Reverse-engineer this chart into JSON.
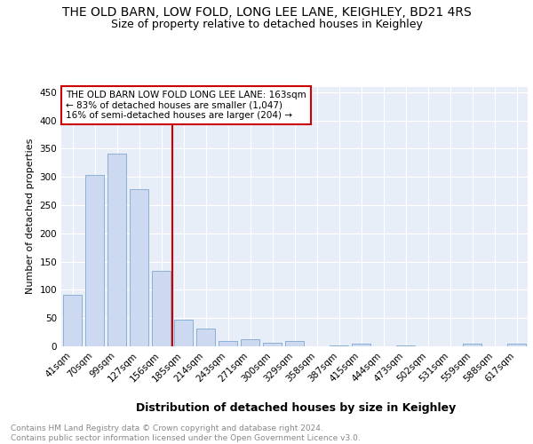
{
  "title": "THE OLD BARN, LOW FOLD, LONG LEE LANE, KEIGHLEY, BD21 4RS",
  "subtitle": "Size of property relative to detached houses in Keighley",
  "xlabel": "Distribution of detached houses by size in Keighley",
  "ylabel": "Number of detached properties",
  "categories": [
    "41sqm",
    "70sqm",
    "99sqm",
    "127sqm",
    "156sqm",
    "185sqm",
    "214sqm",
    "243sqm",
    "271sqm",
    "300sqm",
    "329sqm",
    "358sqm",
    "387sqm",
    "415sqm",
    "444sqm",
    "473sqm",
    "502sqm",
    "531sqm",
    "559sqm",
    "588sqm",
    "617sqm"
  ],
  "values": [
    92,
    303,
    341,
    279,
    134,
    47,
    31,
    10,
    12,
    7,
    9,
    0,
    1,
    4,
    0,
    2,
    0,
    0,
    4,
    0,
    4
  ],
  "bar_color": "#ccd9f0",
  "bar_edge_color": "#7fa8d0",
  "vline_color": "#cc0000",
  "annotation_text": "THE OLD BARN LOW FOLD LONG LEE LANE: 163sqm\n← 83% of detached houses are smaller (1,047)\n16% of semi-detached houses are larger (204) →",
  "annotation_box_color": "#ffffff",
  "annotation_border_color": "#cc0000",
  "ylim": [
    0,
    460
  ],
  "yticks": [
    0,
    50,
    100,
    150,
    200,
    250,
    300,
    350,
    400,
    450
  ],
  "footer": "Contains HM Land Registry data © Crown copyright and database right 2024.\nContains public sector information licensed under the Open Government Licence v3.0.",
  "background_color": "#e8eef8",
  "grid_color": "#ffffff",
  "title_fontsize": 10,
  "subtitle_fontsize": 9,
  "tick_fontsize": 7.5,
  "ylabel_fontsize": 8,
  "xlabel_fontsize": 9,
  "annotation_fontsize": 7.5,
  "footer_fontsize": 6.5
}
